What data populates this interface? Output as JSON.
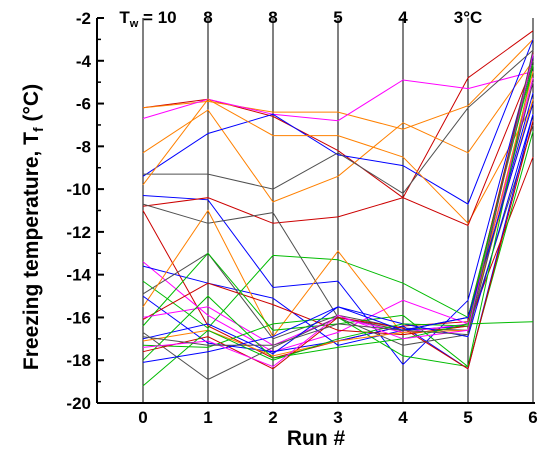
{
  "chart_data": {
    "type": "line",
    "ylabel": "Freezing temperature, T",
    "ylabel_sub": "f",
    "ylabel_unit": " (°C)",
    "xlabel": "Run #",
    "x": [
      0,
      1,
      2,
      3,
      4,
      5,
      6
    ],
    "xticks": [
      "0",
      "1",
      "2",
      "3",
      "4",
      "5",
      "6"
    ],
    "ylim": [
      -20,
      -2
    ],
    "yticks": [
      "-2",
      "-4",
      "-6",
      "-8",
      "-10",
      "-12",
      "-14",
      "-16",
      "-18",
      "-20"
    ],
    "grid": "vertical lines at runs 0-6",
    "top_labels": [
      {
        "prefix": "T",
        "sub": "w",
        "text": " = 10"
      },
      {
        "prefix": "",
        "sub": "",
        "text": "8"
      },
      {
        "prefix": "",
        "sub": "",
        "text": "8"
      },
      {
        "prefix": "",
        "sub": "",
        "text": "5"
      },
      {
        "prefix": "",
        "sub": "",
        "text": "4"
      },
      {
        "prefix": "",
        "sub": "",
        "text": "3°C"
      }
    ],
    "colors": {
      "red": "#cc0000",
      "orange": "#ff8000",
      "magenta": "#ff00ff",
      "blue": "#0000ff",
      "gray": "#505050",
      "green": "#00bb00"
    },
    "series": [
      {
        "color": "#cc0000",
        "values": [
          -6.2,
          -5.8,
          -6.6,
          -8.2,
          -10.4,
          -4.8,
          -2.6
        ]
      },
      {
        "color": "#ff8000",
        "values": [
          -6.2,
          -5.9,
          -6.4,
          -6.4,
          -7.2,
          -6.1,
          -3.0
        ]
      },
      {
        "color": "#ff00ff",
        "values": [
          -6.7,
          -5.8,
          -6.5,
          -6.8,
          -4.9,
          -5.3,
          -4.5
        ]
      },
      {
        "color": "#ff8000",
        "values": [
          -8.3,
          -6.3,
          -10.6,
          -9.4,
          -6.9,
          -8.3,
          -4.0
        ]
      },
      {
        "color": "#0000ff",
        "values": [
          -9.4,
          -7.4,
          -6.5,
          -8.4,
          -8.9,
          -10.7,
          -3.0
        ]
      },
      {
        "color": "#505050",
        "values": [
          -9.3,
          -9.3,
          -10.0,
          -8.3,
          -10.2,
          -6.2,
          -3.5
        ]
      },
      {
        "color": "#ff8000",
        "values": [
          -9.8,
          -5.8,
          -7.5,
          -7.5,
          -8.5,
          -11.6,
          -6.0
        ]
      },
      {
        "color": "#0000ff",
        "values": [
          -10.3,
          -10.5,
          -14.6,
          -14.3,
          -18.2,
          -15.2,
          -3.8
        ]
      },
      {
        "color": "#cc0000",
        "values": [
          -10.8,
          -10.4,
          -11.6,
          -11.3,
          -10.4,
          -11.7,
          -4.2
        ]
      },
      {
        "color": "#505050",
        "values": [
          -10.7,
          -11.6,
          -11.1,
          -16.0,
          -16.6,
          -16.0,
          -4.0
        ]
      },
      {
        "color": "#cc0000",
        "values": [
          -11.0,
          -16.4,
          -17.9,
          -17.1,
          -16.4,
          -16.2,
          -3.6
        ]
      },
      {
        "color": "#ff00ff",
        "values": [
          -13.4,
          -15.9,
          -17.6,
          -16.7,
          -15.2,
          -16.3,
          -4.8
        ]
      },
      {
        "color": "#0000ff",
        "values": [
          -13.6,
          -14.4,
          -15.1,
          -17.3,
          -16.6,
          -16.4,
          -5.5
        ]
      },
      {
        "color": "#00bb00",
        "values": [
          -14.3,
          -16.5,
          -13.1,
          -13.3,
          -14.4,
          -16.0,
          -4.2
        ]
      },
      {
        "color": "#505050",
        "values": [
          -14.9,
          -13.0,
          -17.0,
          -15.9,
          -16.5,
          -16.6,
          -7.0
        ]
      },
      {
        "color": "#ff8000",
        "values": [
          -15.5,
          -11.0,
          -16.9,
          -12.9,
          -16.8,
          -16.4,
          -5.8
        ]
      },
      {
        "color": "#0000ff",
        "values": [
          -15.0,
          -17.2,
          -17.6,
          -17.1,
          -16.4,
          -18.4,
          -6.5
        ]
      },
      {
        "color": "#cc0000",
        "values": [
          -16.1,
          -14.4,
          -15.4,
          -16.6,
          -16.8,
          -16.4,
          -8.5
        ]
      },
      {
        "color": "#00bb00",
        "values": [
          -16.4,
          -13.0,
          -16.6,
          -16.3,
          -15.9,
          -18.3,
          -7.3
        ]
      },
      {
        "color": "#ff00ff",
        "values": [
          -16.0,
          -15.5,
          -17.3,
          -16.0,
          -16.7,
          -16.3,
          -5.0
        ]
      },
      {
        "color": "#505050",
        "values": [
          -16.7,
          -18.9,
          -17.4,
          -16.0,
          -17.3,
          -16.8,
          -5.0
        ]
      },
      {
        "color": "#0000ff",
        "values": [
          -17.0,
          -16.3,
          -17.7,
          -15.5,
          -16.3,
          -16.9,
          -6.5
        ]
      },
      {
        "color": "#00bb00",
        "values": [
          -17.3,
          -17.4,
          -16.3,
          -16.0,
          -17.8,
          -18.3,
          -4.2
        ]
      },
      {
        "color": "#cc0000",
        "values": [
          -17.6,
          -16.9,
          -18.4,
          -16.0,
          -16.5,
          -18.4,
          -6.8
        ]
      },
      {
        "color": "#ff8000",
        "values": [
          -17.1,
          -16.6,
          -17.8,
          -17.1,
          -16.7,
          -16.6,
          -4.5
        ]
      },
      {
        "color": "#00bb00",
        "values": [
          -18.0,
          -15.0,
          -17.9,
          -17.4,
          -17.0,
          -16.3,
          -16.2
        ]
      },
      {
        "color": "#00bb00",
        "values": [
          -19.2,
          -16.6,
          -18.0,
          -17.0,
          -16.3,
          -16.4,
          -3.7
        ]
      },
      {
        "color": "#0000ff",
        "values": [
          -18.1,
          -17.6,
          -16.9,
          -15.5,
          -16.6,
          -16.0,
          -6.0
        ]
      },
      {
        "color": "#ff00ff",
        "values": [
          -17.4,
          -17.1,
          -18.3,
          -15.9,
          -17.0,
          -16.6,
          -3.7
        ]
      },
      {
        "color": "#505050",
        "values": [
          -16.9,
          -17.3,
          -17.3,
          -16.3,
          -16.6,
          -16.8,
          -3.5
        ]
      }
    ]
  }
}
